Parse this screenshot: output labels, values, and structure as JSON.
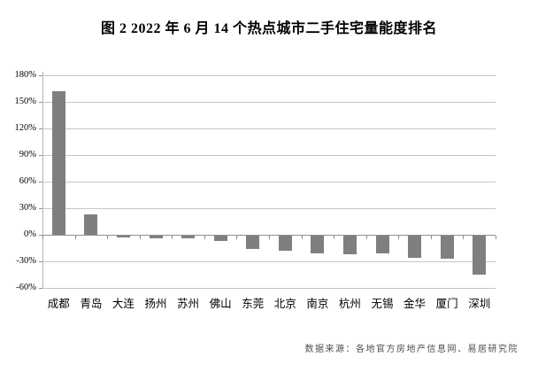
{
  "title": "图 2  2022 年 6 月 14 个热点城市二手住宅量能度排名",
  "source": "数据来源：各地官方房地产信息网、易居研究院",
  "colors": {
    "bar": "#7f7f7f",
    "gridline": "#c6c6c6",
    "zero_line": "#8f8f8f",
    "axis_line": "#b3b3b3",
    "text": "#000000",
    "source_text": "#4d4d4d"
  },
  "chart_data": {
    "type": "bar",
    "title": "图 2  2022 年 6 月 14 个热点城市二手住宅量能度排名",
    "categories": [
      "成都",
      "青岛",
      "大连",
      "扬州",
      "苏州",
      "佛山",
      "东莞",
      "北京",
      "南京",
      "杭州",
      "无锡",
      "金华",
      "厦门",
      "深圳"
    ],
    "values": [
      162,
      23,
      -3,
      -4,
      -4,
      -7,
      -16,
      -18,
      -21,
      -22,
      -21,
      -26,
      -27,
      -45
    ],
    "unit": "%",
    "xlabel": "",
    "ylabel": "",
    "ylim": [
      -60,
      180
    ],
    "ytick_step": 30,
    "ytick_labels": [
      "180%",
      "150%",
      "120%",
      "90%",
      "60%",
      "30%",
      "0%",
      "-30%",
      "-60%"
    ],
    "grid": true,
    "legend": false
  }
}
